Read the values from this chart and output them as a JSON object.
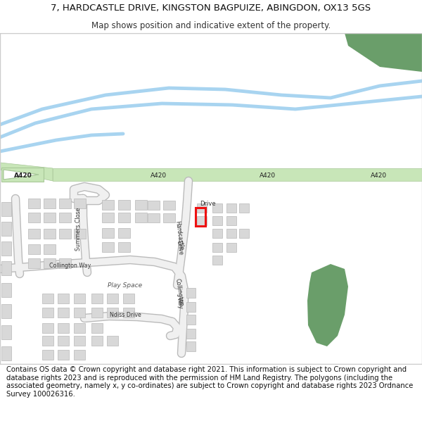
{
  "title_line1": "7, HARDCASTLE DRIVE, KINGSTON BAGPUIZE, ABINGDON, OX13 5GS",
  "title_line2": "Map shows position and indicative extent of the property.",
  "footer_text": "Contains OS data © Crown copyright and database right 2021. This information is subject to Crown copyright and database rights 2023 and is reproduced with the permission of HM Land Registry. The polygons (including the associated geometry, namely x, y co-ordinates) are subject to Crown copyright and database rights 2023 Ordnance Survey 100026316.",
  "bg_color": "#ffffff",
  "map_bg": "#ffffff",
  "road_color": "#c8e6b8",
  "road_border": "#a8c898",
  "water_color": "#a8d4f0",
  "building_color": "#d8d8d8",
  "building_edge": "#b8b8b8",
  "green_color": "#6a9e6a",
  "highlight_color": "#ee1111",
  "title_fontsize": 9.5,
  "subtitle_fontsize": 8.5,
  "footer_fontsize": 7.2,
  "label_fontsize": 6.0
}
